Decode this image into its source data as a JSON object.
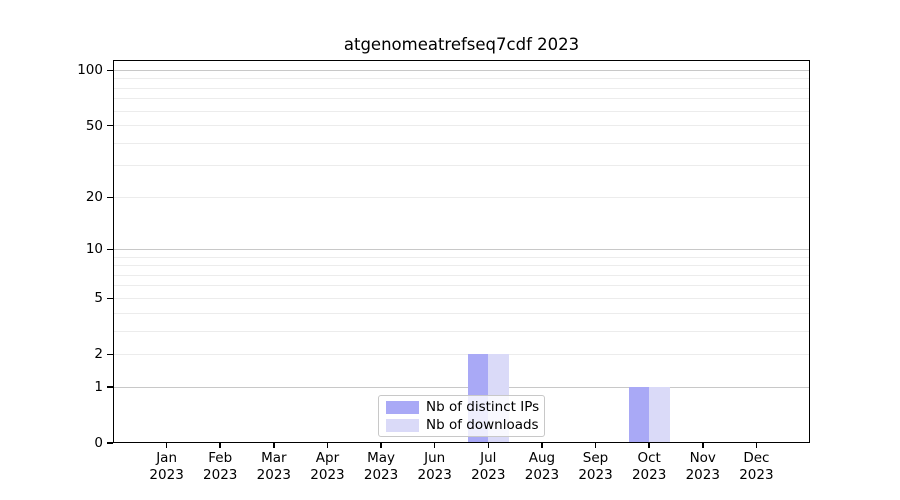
{
  "chart_data": {
    "type": "bar",
    "title": "atgenomeatrefseq7cdf 2023",
    "categories": [
      "Jan",
      "Feb",
      "Mar",
      "Apr",
      "May",
      "Jun",
      "Jul",
      "Aug",
      "Sep",
      "Oct",
      "Nov",
      "Dec"
    ],
    "x_tick_year": "2023",
    "series": [
      {
        "name": "Nb of distinct IPs",
        "color": "#a9a9f6",
        "values": [
          0,
          0,
          0,
          0,
          0,
          0,
          2,
          0,
          0,
          1,
          0,
          0
        ]
      },
      {
        "name": "Nb of downloads",
        "color": "#dadaf8",
        "values": [
          0,
          0,
          0,
          0,
          0,
          0,
          2,
          0,
          0,
          1,
          0,
          0
        ]
      }
    ],
    "yscale": "log1p",
    "ylim": [
      0,
      114
    ],
    "y_ticks": [
      0,
      1,
      2,
      5,
      10,
      20,
      50,
      100
    ],
    "y_major_gridlines": [
      1,
      10,
      100
    ],
    "y_minor_gridlines": [
      2,
      3,
      4,
      5,
      6,
      7,
      8,
      9,
      20,
      30,
      40,
      50,
      60,
      70,
      80,
      90
    ],
    "grid": "on",
    "legend_position": "lower center"
  },
  "colors": {
    "background": "#ffffff",
    "bar_distinct_ips": "#a9a9f6",
    "bar_downloads": "#dadaf8",
    "grid_major": "#c8c8c8",
    "grid_minor": "#ececec",
    "spine": "#000000",
    "text": "#000000",
    "legend_border": "#c8c8c8"
  }
}
